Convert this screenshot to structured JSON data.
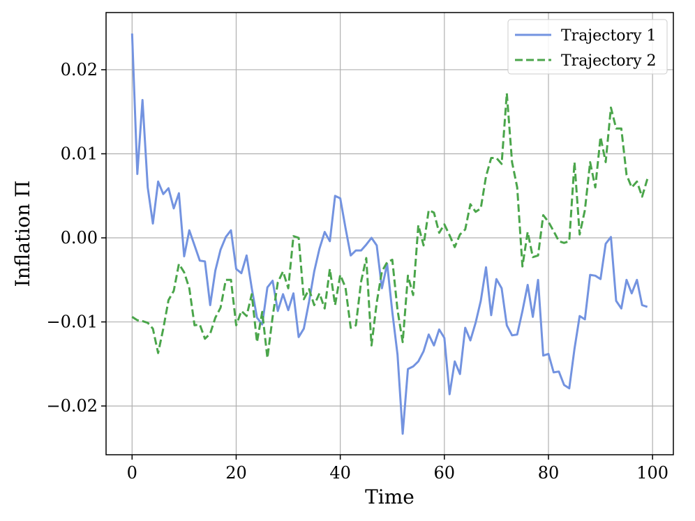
{
  "chart_data": {
    "type": "line",
    "xlabel": "Time",
    "ylabel": "Inflation Π",
    "xlim": [
      -5,
      104
    ],
    "ylim": [
      -0.0258,
      0.0268
    ],
    "xticks": [
      0,
      20,
      40,
      60,
      80,
      100
    ],
    "xtick_labels": [
      "0",
      "20",
      "40",
      "60",
      "80",
      "100"
    ],
    "yticks": [
      -0.02,
      -0.01,
      0.0,
      0.01,
      0.02
    ],
    "ytick_labels": [
      "−0.02",
      "−0.01",
      "0.00",
      "0.01",
      "0.02"
    ],
    "grid": true,
    "legend_position": "top-right",
    "series": [
      {
        "name": "Trajectory 1",
        "color": "#7393e0",
        "style": "solid",
        "x": [
          0,
          1,
          2,
          3,
          4,
          5,
          6,
          7,
          8,
          9,
          10,
          11,
          12,
          13,
          14,
          15,
          16,
          17,
          18,
          19,
          20,
          21,
          22,
          23,
          24,
          25,
          26,
          27,
          28,
          29,
          30,
          31,
          32,
          33,
          34,
          35,
          36,
          37,
          38,
          39,
          40,
          41,
          42,
          43,
          44,
          45,
          46,
          47,
          48,
          49,
          50,
          51,
          52,
          53,
          54,
          55,
          56,
          57,
          58,
          59,
          60,
          61,
          62,
          63,
          64,
          65,
          66,
          67,
          68,
          69,
          70,
          71,
          72,
          73,
          74,
          75,
          76,
          77,
          78,
          79,
          80,
          81,
          82,
          83,
          84,
          85,
          86,
          87,
          88,
          89,
          90,
          91,
          92,
          93,
          94,
          95,
          96,
          97,
          98,
          99
        ],
        "values": [
          0.0243,
          0.0076,
          0.0164,
          0.006,
          0.0017,
          0.0067,
          0.0052,
          0.0059,
          0.0035,
          0.0053,
          -0.0022,
          0.0009,
          -0.0009,
          -0.0027,
          -0.0028,
          -0.008,
          -0.0039,
          -0.0014,
          0.0001,
          0.0009,
          -0.0037,
          -0.0042,
          -0.0021,
          -0.006,
          -0.0095,
          -0.0103,
          -0.0059,
          -0.0051,
          -0.0087,
          -0.0067,
          -0.0086,
          -0.0066,
          -0.0118,
          -0.0108,
          -0.0076,
          -0.004,
          -0.0013,
          0.0007,
          -0.0004,
          0.005,
          0.0047,
          0.0012,
          -0.0021,
          -0.0015,
          -0.0015,
          -0.0008,
          0.0,
          -0.0009,
          -0.006,
          -0.0031,
          -0.0088,
          -0.0139,
          -0.0233,
          -0.0156,
          -0.0153,
          -0.0147,
          -0.0135,
          -0.0115,
          -0.0128,
          -0.0109,
          -0.0119,
          -0.0186,
          -0.0147,
          -0.0162,
          -0.0107,
          -0.0122,
          -0.0101,
          -0.0075,
          -0.0035,
          -0.0092,
          -0.0049,
          -0.006,
          -0.0104,
          -0.0116,
          -0.0115,
          -0.0087,
          -0.0056,
          -0.0094,
          -0.005,
          -0.014,
          -0.0138,
          -0.016,
          -0.0159,
          -0.0175,
          -0.0179,
          -0.0132,
          -0.0093,
          -0.0097,
          -0.0044,
          -0.0045,
          -0.0049,
          -0.0007,
          0.0001,
          -0.0075,
          -0.0084,
          -0.005,
          -0.0066,
          -0.005,
          -0.008,
          -0.0082
        ]
      },
      {
        "name": "Trajectory 2",
        "color": "#4aa54a",
        "style": "dashed",
        "x": [
          0,
          1,
          2,
          3,
          4,
          5,
          6,
          7,
          8,
          9,
          10,
          11,
          12,
          13,
          14,
          15,
          16,
          17,
          18,
          19,
          20,
          21,
          22,
          23,
          24,
          25,
          26,
          27,
          28,
          29,
          30,
          31,
          32,
          33,
          34,
          35,
          36,
          37,
          38,
          39,
          40,
          41,
          42,
          43,
          44,
          45,
          46,
          47,
          48,
          49,
          50,
          51,
          52,
          53,
          54,
          55,
          56,
          57,
          58,
          59,
          60,
          61,
          62,
          63,
          64,
          65,
          66,
          67,
          68,
          69,
          70,
          71,
          72,
          73,
          74,
          75,
          76,
          77,
          78,
          79,
          80,
          81,
          82,
          83,
          84,
          85,
          86,
          87,
          88,
          89,
          90,
          91,
          92,
          93,
          94,
          95,
          96,
          97,
          98,
          99
        ],
        "values": [
          -0.0094,
          -0.0098,
          -0.0099,
          -0.0101,
          -0.0108,
          -0.0137,
          -0.0108,
          -0.0074,
          -0.0063,
          -0.0031,
          -0.0041,
          -0.006,
          -0.0104,
          -0.0103,
          -0.012,
          -0.0114,
          -0.0095,
          -0.0083,
          -0.005,
          -0.005,
          -0.0104,
          -0.0087,
          -0.0093,
          -0.0067,
          -0.0124,
          -0.0088,
          -0.0143,
          -0.0094,
          -0.0053,
          -0.004,
          -0.006,
          0.0002,
          0.0,
          -0.0073,
          -0.0061,
          -0.008,
          -0.0066,
          -0.0084,
          -0.0037,
          -0.008,
          -0.0044,
          -0.0059,
          -0.0107,
          -0.0104,
          -0.0052,
          -0.0024,
          -0.0128,
          -0.0077,
          -0.004,
          -0.0029,
          -0.0026,
          -0.0086,
          -0.0124,
          -0.0045,
          -0.0068,
          0.0015,
          -0.0009,
          0.0033,
          0.003,
          0.0006,
          0.0016,
          0.0003,
          -0.0011,
          0.0004,
          0.001,
          0.004,
          0.0031,
          0.0035,
          0.0073,
          0.0095,
          0.0095,
          0.0088,
          0.0172,
          0.009,
          0.006,
          -0.0034,
          0.0007,
          -0.0023,
          -0.0021,
          0.0027,
          0.0019,
          0.0008,
          -0.0004,
          -0.0006,
          -0.0004,
          0.009,
          0.0004,
          0.0033,
          0.009,
          0.006,
          0.012,
          0.009,
          0.0155,
          0.013,
          0.013,
          0.0075,
          0.006,
          0.0067,
          0.0049,
          0.007
        ]
      }
    ]
  }
}
